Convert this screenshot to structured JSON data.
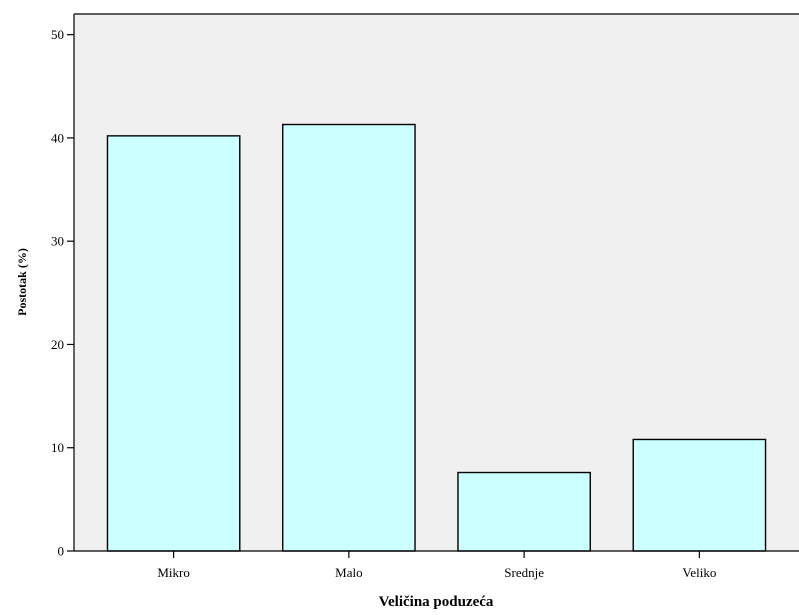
{
  "chart_data": {
    "type": "bar",
    "categories": [
      "Mikro",
      "Malo",
      "Srednje",
      "Veliko"
    ],
    "values": [
      40.2,
      41.3,
      7.6,
      10.8
    ],
    "xlabel": "Veličina poduzeća",
    "ylabel": "Postotak (%)",
    "ylim": [
      0,
      52
    ],
    "yticks": [
      0,
      10,
      20,
      30,
      40,
      50
    ],
    "grid": false,
    "colors": {
      "plot_background": "#f0f0f0",
      "bar_fill": "#ccffff",
      "bar_stroke": "#000000",
      "axis": "#000000"
    }
  }
}
